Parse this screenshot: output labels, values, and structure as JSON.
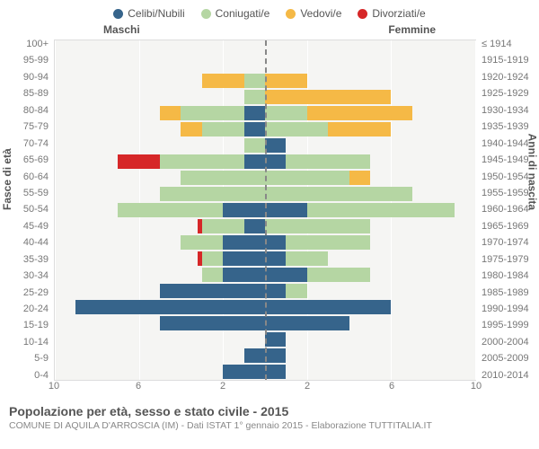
{
  "legend": [
    {
      "label": "Celibi/Nubili",
      "color": "#36648b"
    },
    {
      "label": "Coniugati/e",
      "color": "#b5d6a3"
    },
    {
      "label": "Vedovi/e",
      "color": "#f5b946"
    },
    {
      "label": "Divorziati/e",
      "color": "#d62728"
    }
  ],
  "header_male": "Maschi",
  "header_female": "Femmine",
  "y_left_title": "Fasce di età",
  "y_right_title": "Anni di nascita",
  "title": "Popolazione per età, sesso e stato civile - 2015",
  "subtitle": "COMUNE DI AQUILA D'ARROSCIA (IM) - Dati ISTAT 1° gennaio 2015 - Elaborazione TUTTITALIA.IT",
  "x_ticks": [
    "10",
    "6",
    "2",
    "2",
    "6",
    "10"
  ],
  "chart": {
    "max_value": 10,
    "bar_gap_pct": 10,
    "colors": {
      "celibi": "#36648b",
      "coniugati": "#b5d6a3",
      "vedovi": "#f5b946",
      "divorziati": "#d62728"
    },
    "rows": [
      {
        "age": "100+",
        "birth": "≤ 1914",
        "m": {
          "cel": 0,
          "con": 0,
          "ved": 0,
          "div": 0
        },
        "f": {
          "cel": 0,
          "con": 0,
          "ved": 0,
          "div": 0
        }
      },
      {
        "age": "95-99",
        "birth": "1915-1919",
        "m": {
          "cel": 0,
          "con": 0,
          "ved": 0,
          "div": 0
        },
        "f": {
          "cel": 0,
          "con": 0,
          "ved": 0,
          "div": 0
        }
      },
      {
        "age": "90-94",
        "birth": "1920-1924",
        "m": {
          "cel": 0,
          "con": 1,
          "ved": 2,
          "div": 0
        },
        "f": {
          "cel": 0,
          "con": 0,
          "ved": 2,
          "div": 0
        }
      },
      {
        "age": "85-89",
        "birth": "1925-1929",
        "m": {
          "cel": 0,
          "con": 1,
          "ved": 0,
          "div": 0
        },
        "f": {
          "cel": 0,
          "con": 0,
          "ved": 6,
          "div": 0
        }
      },
      {
        "age": "80-84",
        "birth": "1930-1934",
        "m": {
          "cel": 1,
          "con": 3,
          "ved": 1,
          "div": 0
        },
        "f": {
          "cel": 0,
          "con": 2,
          "ved": 5,
          "div": 0
        }
      },
      {
        "age": "75-79",
        "birth": "1935-1939",
        "m": {
          "cel": 1,
          "con": 2,
          "ved": 1,
          "div": 0
        },
        "f": {
          "cel": 0,
          "con": 3,
          "ved": 3,
          "div": 0
        }
      },
      {
        "age": "70-74",
        "birth": "1940-1944",
        "m": {
          "cel": 0,
          "con": 1,
          "ved": 0,
          "div": 0
        },
        "f": {
          "cel": 1,
          "con": 0,
          "ved": 0,
          "div": 0
        }
      },
      {
        "age": "65-69",
        "birth": "1945-1949",
        "m": {
          "cel": 1,
          "con": 4,
          "ved": 0,
          "div": 2
        },
        "f": {
          "cel": 1,
          "con": 4,
          "ved": 0,
          "div": 0
        }
      },
      {
        "age": "60-64",
        "birth": "1950-1954",
        "m": {
          "cel": 0,
          "con": 4,
          "ved": 0,
          "div": 0
        },
        "f": {
          "cel": 0,
          "con": 4,
          "ved": 1,
          "div": 0
        }
      },
      {
        "age": "55-59",
        "birth": "1955-1959",
        "m": {
          "cel": 0,
          "con": 5,
          "ved": 0,
          "div": 0
        },
        "f": {
          "cel": 0,
          "con": 7,
          "ved": 0,
          "div": 0
        }
      },
      {
        "age": "50-54",
        "birth": "1960-1964",
        "m": {
          "cel": 2,
          "con": 5,
          "ved": 0,
          "div": 0
        },
        "f": {
          "cel": 2,
          "con": 7,
          "ved": 0,
          "div": 0
        }
      },
      {
        "age": "45-49",
        "birth": "1965-1969",
        "m": {
          "cel": 1,
          "con": 2,
          "ved": 0,
          "div": 0.2
        },
        "f": {
          "cel": 0,
          "con": 5,
          "ved": 0,
          "div": 0
        }
      },
      {
        "age": "40-44",
        "birth": "1970-1974",
        "m": {
          "cel": 2,
          "con": 2,
          "ved": 0,
          "div": 0
        },
        "f": {
          "cel": 1,
          "con": 4,
          "ved": 0,
          "div": 0
        }
      },
      {
        "age": "35-39",
        "birth": "1975-1979",
        "m": {
          "cel": 2,
          "con": 1,
          "ved": 0,
          "div": 0.2
        },
        "f": {
          "cel": 1,
          "con": 2,
          "ved": 0,
          "div": 0
        }
      },
      {
        "age": "30-34",
        "birth": "1980-1984",
        "m": {
          "cel": 2,
          "con": 1,
          "ved": 0,
          "div": 0
        },
        "f": {
          "cel": 2,
          "con": 3,
          "ved": 0,
          "div": 0
        }
      },
      {
        "age": "25-29",
        "birth": "1985-1989",
        "m": {
          "cel": 5,
          "con": 0,
          "ved": 0,
          "div": 0
        },
        "f": {
          "cel": 1,
          "con": 1,
          "ved": 0,
          "div": 0
        }
      },
      {
        "age": "20-24",
        "birth": "1990-1994",
        "m": {
          "cel": 9,
          "con": 0,
          "ved": 0,
          "div": 0
        },
        "f": {
          "cel": 6,
          "con": 0,
          "ved": 0,
          "div": 0
        }
      },
      {
        "age": "15-19",
        "birth": "1995-1999",
        "m": {
          "cel": 5,
          "con": 0,
          "ved": 0,
          "div": 0
        },
        "f": {
          "cel": 4,
          "con": 0,
          "ved": 0,
          "div": 0
        }
      },
      {
        "age": "10-14",
        "birth": "2000-2004",
        "m": {
          "cel": 0,
          "con": 0,
          "ved": 0,
          "div": 0
        },
        "f": {
          "cel": 1,
          "con": 0,
          "ved": 0,
          "div": 0
        }
      },
      {
        "age": "5-9",
        "birth": "2005-2009",
        "m": {
          "cel": 1,
          "con": 0,
          "ved": 0,
          "div": 0
        },
        "f": {
          "cel": 1,
          "con": 0,
          "ved": 0,
          "div": 0
        }
      },
      {
        "age": "0-4",
        "birth": "2010-2014",
        "m": {
          "cel": 2,
          "con": 0,
          "ved": 0,
          "div": 0
        },
        "f": {
          "cel": 1,
          "con": 0,
          "ved": 0,
          "div": 0
        }
      }
    ]
  }
}
